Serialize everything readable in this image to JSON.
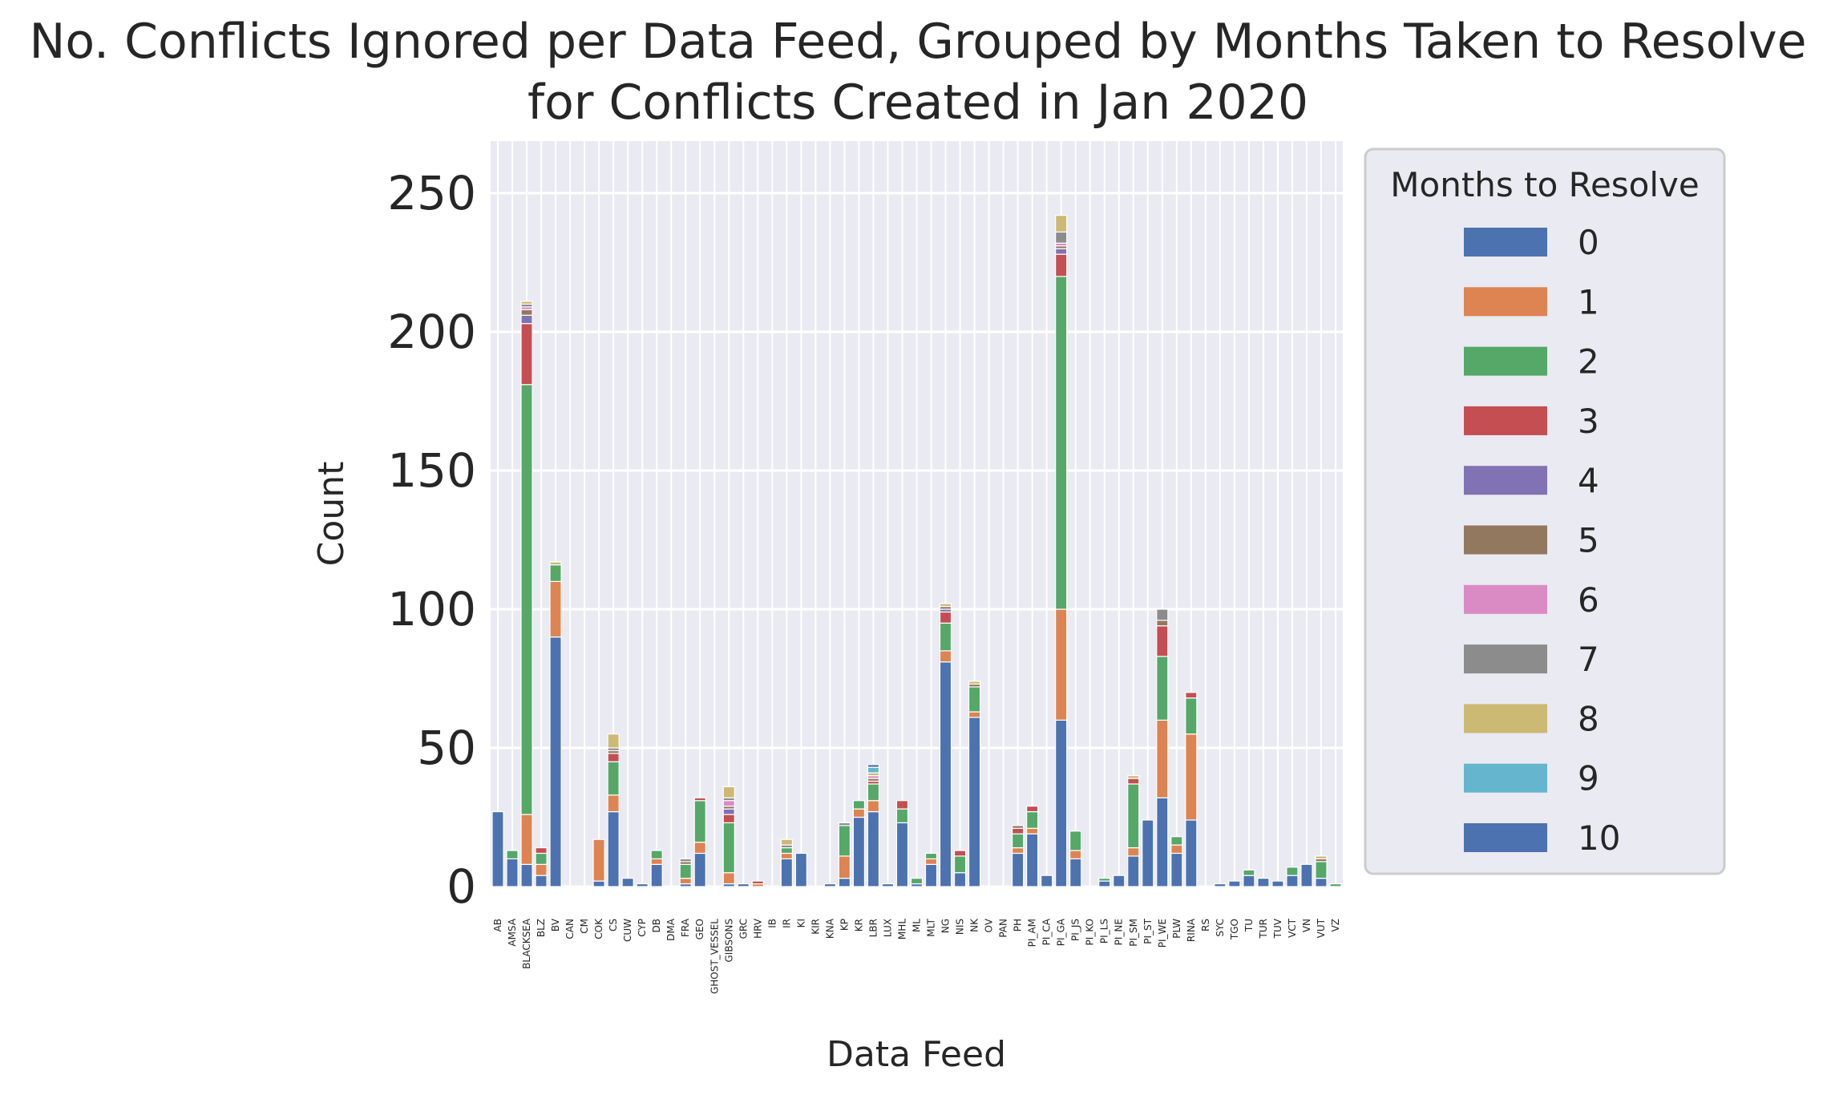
{
  "colors": {
    "background": "#eaeaf2",
    "grid": "#ffffff",
    "series": [
      "#4c72b0",
      "#dd8452",
      "#55a868",
      "#c44e52",
      "#8172b3",
      "#937860",
      "#da8bc3",
      "#8c8c8c",
      "#ccb974",
      "#64b5cd",
      "#4c72b0"
    ]
  },
  "chart_data": {
    "type": "bar",
    "stacked": true,
    "title": "No. Conflicts Ignored per Data Feed, Grouped by Months Taken to Resolve\nfor Conflicts Created in Jan 2020",
    "title_lines": [
      "No. Conflicts Ignored per Data Feed, Grouped by Months Taken to Resolve",
      "for Conflicts Created in Jan 2020"
    ],
    "xlabel": "Data Feed",
    "ylabel": "Count",
    "ylim": [
      0,
      268
    ],
    "yticks": [
      0,
      50,
      100,
      150,
      200,
      250
    ],
    "grid": true,
    "legend": {
      "title": "Months to Resolve",
      "position": "outside-right",
      "labels": [
        "0",
        "1",
        "2",
        "3",
        "4",
        "5",
        "6",
        "7",
        "8",
        "9",
        "10"
      ]
    },
    "categories": [
      "AB",
      "AMSA",
      "BLACKSEA",
      "BLZ",
      "BV",
      "CAN",
      "CM",
      "COK",
      "CS",
      "CUW",
      "CYP",
      "DB",
      "DMA",
      "FRA",
      "GEO",
      "GHOST_VESSEL",
      "GIBSONS",
      "GRC",
      "HRV",
      "IB",
      "IR",
      "KI",
      "KIR",
      "KNA",
      "KP",
      "KR",
      "LBR",
      "LUX",
      "MHL",
      "ML",
      "MLT",
      "NG",
      "NIS",
      "NK",
      "OV",
      "PAN",
      "PH",
      "PI_AM",
      "PI_CA",
      "PI_GA",
      "PI_JS",
      "PI_KO",
      "PI_LS",
      "PI_NE",
      "PI_SM",
      "PI_ST",
      "PI_WE",
      "PLW",
      "RINA",
      "RS",
      "SYC",
      "TGO",
      "TU",
      "TUR",
      "TUV",
      "VCT",
      "VN",
      "VUT",
      "VZ"
    ],
    "series": [
      {
        "name": "0",
        "values": [
          27,
          10,
          8,
          4,
          90,
          0,
          0,
          2,
          27,
          3,
          1,
          8,
          0,
          1,
          12,
          0,
          1,
          1,
          0,
          0,
          10,
          12,
          0,
          1,
          3,
          25,
          27,
          1,
          23,
          1,
          8,
          81,
          5,
          61,
          0,
          0,
          12,
          19,
          4,
          60,
          10,
          0,
          2,
          4,
          11,
          24,
          32,
          12,
          24,
          0,
          1,
          2,
          4,
          3,
          2,
          4,
          8,
          3,
          0
        ]
      },
      {
        "name": "1",
        "values": [
          0,
          0,
          18,
          4,
          20,
          0,
          0,
          15,
          6,
          0,
          0,
          2,
          0,
          2,
          4,
          0,
          4,
          0,
          1,
          0,
          2,
          0,
          0,
          0,
          8,
          3,
          4,
          0,
          0,
          0,
          2,
          4,
          0,
          2,
          0,
          0,
          2,
          2,
          0,
          40,
          3,
          0,
          0,
          0,
          3,
          0,
          28,
          3,
          31,
          0,
          0,
          0,
          0,
          0,
          0,
          0,
          0,
          0,
          0
        ]
      },
      {
        "name": "2",
        "values": [
          0,
          3,
          155,
          4,
          6,
          0,
          0,
          0,
          12,
          0,
          0,
          3,
          0,
          5,
          15,
          0,
          18,
          0,
          0,
          0,
          2,
          0,
          0,
          0,
          11,
          3,
          6,
          0,
          5,
          2,
          2,
          10,
          6,
          9,
          0,
          0,
          5,
          6,
          0,
          120,
          7,
          0,
          1,
          0,
          23,
          0,
          23,
          3,
          13,
          0,
          0,
          0,
          2,
          0,
          0,
          3,
          0,
          6,
          1
        ]
      },
      {
        "name": "3",
        "values": [
          0,
          0,
          22,
          2,
          0,
          0,
          0,
          0,
          3,
          0,
          0,
          0,
          0,
          0,
          1,
          0,
          3,
          0,
          1,
          0,
          0,
          0,
          0,
          0,
          0,
          0,
          1,
          0,
          3,
          0,
          0,
          4,
          2,
          0,
          0,
          0,
          2,
          2,
          0,
          8,
          0,
          0,
          0,
          0,
          2,
          0,
          11,
          0,
          2,
          0,
          0,
          0,
          0,
          0,
          0,
          0,
          0,
          0,
          0
        ]
      },
      {
        "name": "4",
        "values": [
          0,
          0,
          3,
          0,
          0,
          0,
          0,
          0,
          0,
          0,
          0,
          0,
          0,
          0,
          0,
          0,
          2,
          0,
          0,
          0,
          0,
          0,
          0,
          0,
          0,
          0,
          0,
          0,
          0,
          0,
          0,
          1,
          0,
          0,
          0,
          0,
          0,
          0,
          0,
          2,
          0,
          0,
          0,
          0,
          0,
          0,
          0,
          0,
          0,
          0,
          0,
          0,
          0,
          0,
          0,
          0,
          0,
          0,
          0
        ]
      },
      {
        "name": "5",
        "values": [
          0,
          0,
          2,
          0,
          0,
          0,
          0,
          0,
          1,
          0,
          0,
          0,
          0,
          1,
          0,
          0,
          1,
          0,
          0,
          0,
          0,
          0,
          0,
          0,
          0,
          0,
          1,
          0,
          0,
          0,
          0,
          1,
          0,
          1,
          0,
          0,
          1,
          0,
          0,
          1,
          0,
          0,
          0,
          0,
          0,
          0,
          2,
          0,
          0,
          0,
          0,
          0,
          0,
          0,
          0,
          0,
          0,
          1,
          0
        ]
      },
      {
        "name": "6",
        "values": [
          0,
          0,
          1,
          0,
          0,
          0,
          0,
          0,
          0,
          0,
          0,
          0,
          0,
          0,
          0,
          0,
          2,
          0,
          0,
          0,
          0,
          0,
          0,
          0,
          0,
          0,
          1,
          0,
          0,
          0,
          0,
          0,
          0,
          0,
          0,
          0,
          0,
          0,
          0,
          1,
          0,
          0,
          0,
          0,
          0,
          0,
          0,
          0,
          0,
          0,
          0,
          0,
          0,
          0,
          0,
          0,
          0,
          0,
          0
        ]
      },
      {
        "name": "7",
        "values": [
          0,
          0,
          1,
          0,
          0,
          0,
          0,
          0,
          1,
          0,
          0,
          0,
          0,
          1,
          0,
          0,
          1,
          0,
          0,
          0,
          1,
          0,
          0,
          0,
          1,
          0,
          0,
          0,
          0,
          0,
          0,
          0,
          0,
          0,
          0,
          0,
          0,
          0,
          0,
          4,
          0,
          0,
          0,
          0,
          0,
          0,
          4,
          0,
          0,
          0,
          0,
          0,
          0,
          0,
          0,
          0,
          0,
          0,
          0
        ]
      },
      {
        "name": "8",
        "values": [
          0,
          0,
          1,
          0,
          1,
          0,
          0,
          0,
          5,
          0,
          0,
          0,
          0,
          0,
          0,
          0,
          4,
          0,
          0,
          0,
          2,
          0,
          0,
          0,
          0,
          0,
          1,
          0,
          0,
          0,
          0,
          1,
          0,
          1,
          0,
          0,
          0,
          0,
          0,
          6,
          0,
          0,
          0,
          0,
          1,
          0,
          0,
          0,
          0,
          0,
          0,
          0,
          0,
          0,
          0,
          0,
          0,
          1,
          0
        ]
      },
      {
        "name": "9",
        "values": [
          0,
          0,
          0,
          0,
          0,
          0,
          0,
          0,
          0,
          0,
          0,
          0,
          0,
          0,
          0,
          0,
          0,
          0,
          0,
          0,
          0,
          0,
          0,
          0,
          0,
          0,
          2,
          0,
          0,
          0,
          0,
          0,
          0,
          0,
          0,
          0,
          0,
          0,
          0,
          0,
          0,
          0,
          0,
          0,
          0,
          0,
          0,
          0,
          0,
          0,
          0,
          0,
          0,
          0,
          0,
          0,
          0,
          0,
          0
        ]
      },
      {
        "name": "10",
        "values": [
          0,
          0,
          0,
          0,
          0,
          0,
          0,
          0,
          0,
          0,
          0,
          0,
          0,
          0,
          0,
          0,
          0,
          0,
          0,
          0,
          0,
          0,
          0,
          0,
          0,
          0,
          1,
          0,
          0,
          0,
          0,
          0,
          0,
          0,
          0,
          0,
          0,
          0,
          0,
          0,
          0,
          0,
          0,
          0,
          0,
          0,
          0,
          0,
          0,
          0,
          0,
          0,
          0,
          0,
          0,
          0,
          0,
          0,
          0
        ]
      }
    ]
  }
}
